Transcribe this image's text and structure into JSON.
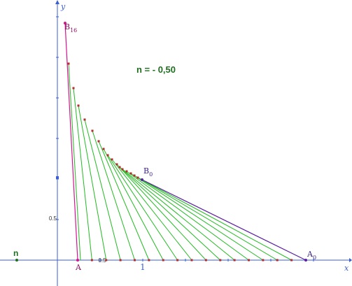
{
  "diagram": {
    "param_text": "n = - 0,50",
    "slider_label": "n",
    "axis": {
      "x_label": "x",
      "y_label": "y"
    },
    "point_labels": {
      "A": "A",
      "A0_main": "A",
      "A0_sub": "0",
      "B0_main": "B",
      "B0_sub": "0",
      "B16_main": "B",
      "B16_sub": "16"
    },
    "tick_labels": {
      "x_one": "1",
      "x_half": "0.5",
      "y_half": "0.5"
    },
    "colors": {
      "axis": "#3b5fd0",
      "green_segments": "#22bb22",
      "purple_segment": "#5a1fa0",
      "magenta_segment": "#d4148f",
      "points": "#b42d2d",
      "text_green": "#1f6e1f"
    }
  }
}
